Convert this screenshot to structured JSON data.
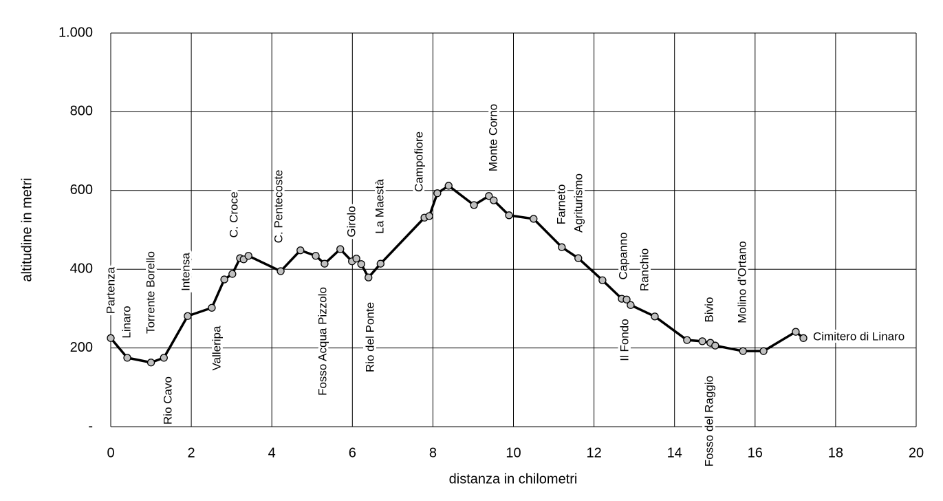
{
  "chart_data": {
    "type": "line",
    "x_label": "distanza in chilometri",
    "y_label": "altitudine  in metri",
    "x": [
      0,
      0.41,
      1.0,
      1.32,
      1.91,
      2.51,
      2.82,
      3.02,
      3.21,
      3.3,
      3.42,
      4.22,
      4.71,
      5.09,
      5.31,
      5.7,
      5.99,
      6.1,
      6.22,
      6.4,
      6.7,
      7.79,
      7.91,
      8.11,
      8.39,
      9.02,
      9.39,
      9.51,
      9.89,
      10.5,
      11.2,
      11.61,
      12.21,
      12.69,
      12.81,
      12.91,
      13.51,
      14.31,
      14.69,
      14.89,
      15.01,
      15.7,
      16.21,
      17.01,
      17.2
    ],
    "values": [
      225,
      175,
      163,
      175,
      281,
      302,
      374,
      388,
      428,
      425,
      434,
      395,
      448,
      434,
      414,
      451,
      420,
      427,
      413,
      379,
      414,
      531,
      535,
      593,
      612,
      563,
      586,
      575,
      537,
      528,
      456,
      428,
      372,
      325,
      323,
      309,
      280,
      220,
      217,
      213,
      206,
      192,
      192,
      241,
      225
    ],
    "color": "#000000",
    "marker_color": "#c0c0c0",
    "annotations": [
      "Partenza",
      "Linaro",
      "Torrente Borello",
      "Rio Cavo",
      "Intensa",
      "Valleripa",
      "C. Croce",
      "C. Pentecoste",
      "Fosso Acqua Pizzolo",
      "Girolo",
      "Rio del Ponte",
      "La Maestà",
      "Campofiore",
      "Monte Corno",
      "Farneto",
      "Agriturismo",
      "Capanno",
      "Il Fondo",
      "Ranchio",
      "Bivio",
      "Fosso del Raggio",
      "Molino d'Ortano",
      "Cimitero di Linaro"
    ],
    "xlim": [
      0,
      20
    ],
    "xticks": [
      0,
      2,
      4,
      6,
      8,
      10,
      12,
      14,
      16,
      18,
      20
    ],
    "ylim": [
      0,
      1000
    ],
    "yticks": [
      {
        "value": 0,
        "label": "-"
      },
      200,
      400,
      600,
      800,
      {
        "value": 1000,
        "label": "1.000"
      }
    ],
    "grid": true
  }
}
